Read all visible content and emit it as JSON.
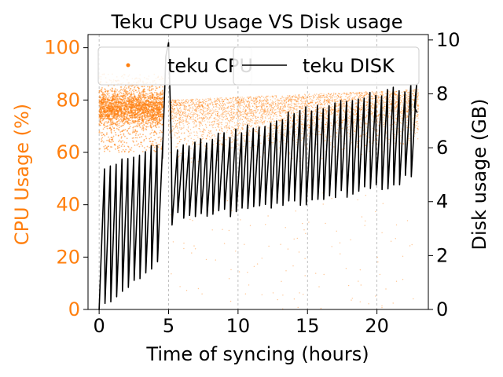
{
  "chart_data": {
    "type": "scatter+line",
    "title": "Teku CPU Usage VS Disk usage",
    "xlabel": "Time of syncing (hours)",
    "ylabel_left": "CPU Usage (%)",
    "ylabel_right": "Disk usage (GB)",
    "xlim": [
      -0.8,
      23.7
    ],
    "ylim_left": [
      0,
      105
    ],
    "ylim_right": [
      0,
      10.2
    ],
    "xticks": [
      0,
      5,
      10,
      15,
      20
    ],
    "yticks_left": [
      0,
      20,
      40,
      60,
      80,
      100
    ],
    "yticks_right": [
      0,
      2,
      4,
      6,
      8,
      10
    ],
    "grid": "x-dashed",
    "legend": "top",
    "colors": {
      "cpu": "#ff7f0e",
      "disk": "#000000",
      "grid": "#b0b0b0"
    },
    "series": [
      {
        "name": "teku CPU",
        "axis": "left",
        "style": "scatter",
        "description_points": {
          "phase1_hours": [
            0,
            4.6
          ],
          "phase1_center": 77,
          "phase1_spread": [
            70,
            85
          ],
          "phase2_hours": [
            5,
            23
          ],
          "phase2_center_start": 72,
          "phase2_center_end": 80,
          "phase2_spread": [
            58,
            84
          ]
        }
      },
      {
        "name": "teku DISK",
        "axis": "right",
        "style": "line",
        "sawtooth": {
          "lows": [
            [
              0,
              0
            ],
            [
              2,
              0.8
            ],
            [
              4.4,
              1.8
            ],
            [
              5.5,
              3.5
            ],
            [
              10,
              3.6
            ],
            [
              15,
              4.0
            ],
            [
              20,
              4.5
            ],
            [
              22.8,
              5.0
            ]
          ],
          "highs": [
            [
              0,
              5.0
            ],
            [
              2,
              5.6
            ],
            [
              4.4,
              6.2
            ],
            [
              5.5,
              6.0
            ],
            [
              10,
              6.6
            ],
            [
              15,
              7.4
            ],
            [
              20,
              8.0
            ],
            [
              22.8,
              8.3
            ]
          ],
          "cycle_hours": 0.42,
          "spike": {
            "x": [
              4.55,
              4.8,
              5.0,
              5.2
            ],
            "y": [
              5.6,
              9.4,
              9.9,
              6.2
            ]
          },
          "end": {
            "x": [
              22.7,
              22.9
            ],
            "y": [
              7.5,
              7.3
            ]
          }
        }
      }
    ]
  }
}
